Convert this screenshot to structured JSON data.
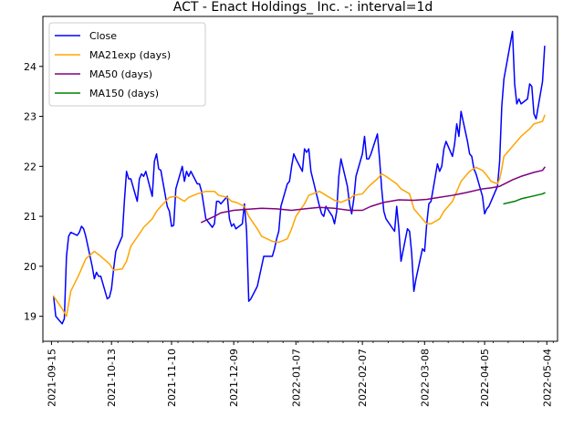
{
  "chart_data": {
    "type": "line",
    "title": "ACT - Enact Holdings_ Inc. -: interval=1d",
    "xlabel": "",
    "ylabel": "",
    "ylim": [
      18.5,
      25.0
    ],
    "xlim": [
      "2021-09-11",
      "2022-05-09"
    ],
    "x_ticks": [
      "2021-09-15",
      "2021-10-13",
      "2021-11-10",
      "2021-12-09",
      "2022-01-07",
      "2022-02-07",
      "2022-03-08",
      "2022-04-05",
      "2022-05-04"
    ],
    "y_ticks": [
      19,
      20,
      21,
      22,
      23,
      24
    ],
    "legend_position": "upper-left",
    "grid": false,
    "series": [
      {
        "name": "Close",
        "color": "#0000ff",
        "points": [
          [
            "2021-09-16",
            19.4
          ],
          [
            "2021-09-17",
            19.0
          ],
          [
            "2021-09-20",
            18.85
          ],
          [
            "2021-09-21",
            18.95
          ],
          [
            "2021-09-22",
            20.2
          ],
          [
            "2021-09-23",
            20.6
          ],
          [
            "2021-09-24",
            20.68
          ],
          [
            "2021-09-27",
            20.62
          ],
          [
            "2021-09-28",
            20.68
          ],
          [
            "2021-09-29",
            20.8
          ],
          [
            "2021-09-30",
            20.75
          ],
          [
            "2021-10-01",
            20.6
          ],
          [
            "2021-10-04",
            20.0
          ],
          [
            "2021-10-05",
            19.75
          ],
          [
            "2021-10-06",
            19.88
          ],
          [
            "2021-10-07",
            19.8
          ],
          [
            "2021-10-08",
            19.8
          ],
          [
            "2021-10-11",
            19.35
          ],
          [
            "2021-10-12",
            19.38
          ],
          [
            "2021-10-13",
            19.55
          ],
          [
            "2021-10-14",
            19.95
          ],
          [
            "2021-10-15",
            20.3
          ],
          [
            "2021-10-18",
            20.6
          ],
          [
            "2021-10-19",
            21.3
          ],
          [
            "2021-10-20",
            21.9
          ],
          [
            "2021-10-21",
            21.75
          ],
          [
            "2021-10-22",
            21.75
          ],
          [
            "2021-10-25",
            21.3
          ],
          [
            "2021-10-26",
            21.75
          ],
          [
            "2021-10-27",
            21.85
          ],
          [
            "2021-10-28",
            21.8
          ],
          [
            "2021-10-29",
            21.9
          ],
          [
            "2021-11-01",
            21.4
          ],
          [
            "2021-11-02",
            22.1
          ],
          [
            "2021-11-03",
            22.25
          ],
          [
            "2021-11-04",
            21.95
          ],
          [
            "2021-11-05",
            21.92
          ],
          [
            "2021-11-08",
            21.2
          ],
          [
            "2021-11-09",
            21.1
          ],
          [
            "2021-11-10",
            20.8
          ],
          [
            "2021-11-11",
            20.82
          ],
          [
            "2021-11-12",
            21.55
          ],
          [
            "2021-11-15",
            22.0
          ],
          [
            "2021-11-16",
            21.7
          ],
          [
            "2021-11-17",
            21.9
          ],
          [
            "2021-11-18",
            21.8
          ],
          [
            "2021-11-19",
            21.9
          ],
          [
            "2021-11-22",
            21.65
          ],
          [
            "2021-11-23",
            21.65
          ],
          [
            "2021-11-24",
            21.5
          ],
          [
            "2021-11-26",
            20.95
          ],
          [
            "2021-11-29",
            20.78
          ],
          [
            "2021-11-30",
            20.85
          ],
          [
            "2021-12-01",
            21.3
          ],
          [
            "2021-12-02",
            21.3
          ],
          [
            "2021-12-03",
            21.25
          ],
          [
            "2021-12-06",
            21.4
          ],
          [
            "2021-12-07",
            20.95
          ],
          [
            "2021-12-08",
            20.8
          ],
          [
            "2021-12-09",
            20.85
          ],
          [
            "2021-12-10",
            20.75
          ],
          [
            "2021-12-13",
            20.85
          ],
          [
            "2021-12-14",
            21.25
          ],
          [
            "2021-12-15",
            20.7
          ],
          [
            "2021-12-16",
            19.3
          ],
          [
            "2021-12-17",
            19.35
          ],
          [
            "2021-12-20",
            19.6
          ],
          [
            "2021-12-21",
            19.8
          ],
          [
            "2021-12-22",
            20.0
          ],
          [
            "2021-12-23",
            20.2
          ],
          [
            "2021-12-27",
            20.2
          ],
          [
            "2021-12-28",
            20.35
          ],
          [
            "2021-12-29",
            20.55
          ],
          [
            "2021-12-30",
            20.7
          ],
          [
            "2021-12-31",
            21.2
          ],
          [
            "2022-01-03",
            21.65
          ],
          [
            "2022-01-04",
            21.7
          ],
          [
            "2022-01-05",
            22.0
          ],
          [
            "2022-01-06",
            22.25
          ],
          [
            "2022-01-07",
            22.15
          ],
          [
            "2022-01-10",
            21.9
          ],
          [
            "2022-01-11",
            22.35
          ],
          [
            "2022-01-12",
            22.28
          ],
          [
            "2022-01-13",
            22.35
          ],
          [
            "2022-01-14",
            21.9
          ],
          [
            "2022-01-18",
            21.2
          ],
          [
            "2022-01-19",
            21.05
          ],
          [
            "2022-01-20",
            21.0
          ],
          [
            "2022-01-21",
            21.2
          ],
          [
            "2022-01-24",
            21.0
          ],
          [
            "2022-01-25",
            20.85
          ],
          [
            "2022-01-26",
            21.1
          ],
          [
            "2022-01-27",
            21.8
          ],
          [
            "2022-01-28",
            22.15
          ],
          [
            "2022-01-31",
            21.6
          ],
          [
            "2022-02-01",
            21.25
          ],
          [
            "2022-02-02",
            21.05
          ],
          [
            "2022-02-03",
            21.35
          ],
          [
            "2022-02-04",
            21.8
          ],
          [
            "2022-02-07",
            22.25
          ],
          [
            "2022-02-08",
            22.6
          ],
          [
            "2022-02-09",
            22.15
          ],
          [
            "2022-02-10",
            22.15
          ],
          [
            "2022-02-11",
            22.25
          ],
          [
            "2022-02-14",
            22.65
          ],
          [
            "2022-02-15",
            22.15
          ],
          [
            "2022-02-16",
            21.55
          ],
          [
            "2022-02-17",
            21.1
          ],
          [
            "2022-02-18",
            20.95
          ],
          [
            "2022-02-22",
            20.7
          ],
          [
            "2022-02-23",
            21.2
          ],
          [
            "2022-02-24",
            20.75
          ],
          [
            "2022-02-25",
            20.1
          ],
          [
            "2022-02-28",
            20.75
          ],
          [
            "2022-03-01",
            20.7
          ],
          [
            "2022-03-02",
            20.25
          ],
          [
            "2022-03-03",
            19.5
          ],
          [
            "2022-03-04",
            19.75
          ],
          [
            "2022-03-07",
            20.35
          ],
          [
            "2022-03-08",
            20.3
          ],
          [
            "2022-03-09",
            20.85
          ],
          [
            "2022-03-10",
            21.25
          ],
          [
            "2022-03-11",
            21.3
          ],
          [
            "2022-03-14",
            22.05
          ],
          [
            "2022-03-15",
            21.9
          ],
          [
            "2022-03-16",
            22.0
          ],
          [
            "2022-03-17",
            22.35
          ],
          [
            "2022-03-18",
            22.5
          ],
          [
            "2022-03-21",
            22.2
          ],
          [
            "2022-03-22",
            22.45
          ],
          [
            "2022-03-23",
            22.85
          ],
          [
            "2022-03-24",
            22.6
          ],
          [
            "2022-03-25",
            23.1
          ],
          [
            "2022-03-28",
            22.5
          ],
          [
            "2022-03-29",
            22.25
          ],
          [
            "2022-03-30",
            22.2
          ],
          [
            "2022-03-31",
            21.95
          ],
          [
            "2022-04-01",
            21.85
          ],
          [
            "2022-04-04",
            21.4
          ],
          [
            "2022-04-05",
            21.05
          ],
          [
            "2022-04-06",
            21.15
          ],
          [
            "2022-04-07",
            21.2
          ],
          [
            "2022-04-08",
            21.3
          ],
          [
            "2022-04-11",
            21.6
          ],
          [
            "2022-04-12",
            22.1
          ],
          [
            "2022-04-13",
            23.2
          ],
          [
            "2022-04-14",
            23.75
          ],
          [
            "2022-04-18",
            24.7
          ],
          [
            "2022-04-19",
            23.65
          ],
          [
            "2022-04-20",
            23.25
          ],
          [
            "2022-04-21",
            23.35
          ],
          [
            "2022-04-22",
            23.25
          ],
          [
            "2022-04-25",
            23.35
          ],
          [
            "2022-04-26",
            23.65
          ],
          [
            "2022-04-27",
            23.6
          ],
          [
            "2022-04-28",
            23.05
          ],
          [
            "2022-04-29",
            22.95
          ],
          [
            "2022-05-02",
            23.7
          ],
          [
            "2022-05-03",
            24.4
          ]
        ]
      },
      {
        "name": "MA21exp (days)",
        "color": "#ffa500",
        "points": [
          [
            "2021-09-16",
            19.4
          ],
          [
            "2021-09-20",
            19.15
          ],
          [
            "2021-09-22",
            19.0
          ],
          [
            "2021-09-24",
            19.5
          ],
          [
            "2021-09-28",
            19.85
          ],
          [
            "2021-10-01",
            20.15
          ],
          [
            "2021-10-05",
            20.3
          ],
          [
            "2021-10-08",
            20.2
          ],
          [
            "2021-10-12",
            20.05
          ],
          [
            "2021-10-14",
            19.92
          ],
          [
            "2021-10-18",
            19.95
          ],
          [
            "2021-10-20",
            20.1
          ],
          [
            "2021-10-22",
            20.4
          ],
          [
            "2021-10-26",
            20.65
          ],
          [
            "2021-10-28",
            20.78
          ],
          [
            "2021-11-01",
            20.95
          ],
          [
            "2021-11-03",
            21.1
          ],
          [
            "2021-11-05",
            21.2
          ],
          [
            "2021-11-09",
            21.38
          ],
          [
            "2021-11-12",
            21.4
          ],
          [
            "2021-11-16",
            21.3
          ],
          [
            "2021-11-18",
            21.38
          ],
          [
            "2021-11-22",
            21.45
          ],
          [
            "2021-11-26",
            21.5
          ],
          [
            "2021-11-30",
            21.5
          ],
          [
            "2021-12-02",
            21.42
          ],
          [
            "2021-12-06",
            21.38
          ],
          [
            "2021-12-08",
            21.3
          ],
          [
            "2021-12-10",
            21.28
          ],
          [
            "2021-12-14",
            21.2
          ],
          [
            "2021-12-16",
            21.0
          ],
          [
            "2021-12-20",
            20.75
          ],
          [
            "2021-12-22",
            20.6
          ],
          [
            "2021-12-27",
            20.5
          ],
          [
            "2021-12-30",
            20.48
          ],
          [
            "2022-01-03",
            20.55
          ],
          [
            "2022-01-05",
            20.75
          ],
          [
            "2022-01-07",
            21.0
          ],
          [
            "2022-01-11",
            21.25
          ],
          [
            "2022-01-13",
            21.42
          ],
          [
            "2022-01-18",
            21.5
          ],
          [
            "2022-01-21",
            21.42
          ],
          [
            "2022-01-25",
            21.32
          ],
          [
            "2022-01-28",
            21.28
          ],
          [
            "2022-02-01",
            21.35
          ],
          [
            "2022-02-03",
            21.42
          ],
          [
            "2022-02-07",
            21.45
          ],
          [
            "2022-02-10",
            21.6
          ],
          [
            "2022-02-14",
            21.75
          ],
          [
            "2022-02-16",
            21.85
          ],
          [
            "2022-02-18",
            21.8
          ],
          [
            "2022-02-23",
            21.65
          ],
          [
            "2022-02-25",
            21.55
          ],
          [
            "2022-03-01",
            21.45
          ],
          [
            "2022-03-03",
            21.15
          ],
          [
            "2022-03-07",
            20.95
          ],
          [
            "2022-03-09",
            20.85
          ],
          [
            "2022-03-11",
            20.85
          ],
          [
            "2022-03-15",
            20.95
          ],
          [
            "2022-03-17",
            21.1
          ],
          [
            "2022-03-21",
            21.3
          ],
          [
            "2022-03-23",
            21.5
          ],
          [
            "2022-03-25",
            21.7
          ],
          [
            "2022-03-29",
            21.9
          ],
          [
            "2022-04-01",
            21.98
          ],
          [
            "2022-04-04",
            21.92
          ],
          [
            "2022-04-06",
            21.82
          ],
          [
            "2022-04-08",
            21.7
          ],
          [
            "2022-04-11",
            21.65
          ],
          [
            "2022-04-12",
            21.75
          ],
          [
            "2022-04-13",
            21.95
          ],
          [
            "2022-04-14",
            22.2
          ],
          [
            "2022-04-18",
            22.4
          ],
          [
            "2022-04-20",
            22.5
          ],
          [
            "2022-04-22",
            22.6
          ],
          [
            "2022-04-26",
            22.75
          ],
          [
            "2022-04-28",
            22.85
          ],
          [
            "2022-05-02",
            22.9
          ],
          [
            "2022-05-03",
            23.02
          ]
        ]
      },
      {
        "name": "MA50 (days)",
        "color": "#800080",
        "points": [
          [
            "2021-11-24",
            20.88
          ],
          [
            "2021-11-30",
            21.0
          ],
          [
            "2021-12-03",
            21.07
          ],
          [
            "2021-12-09",
            21.12
          ],
          [
            "2021-12-15",
            21.14
          ],
          [
            "2021-12-22",
            21.16
          ],
          [
            "2021-12-29",
            21.15
          ],
          [
            "2022-01-05",
            21.12
          ],
          [
            "2022-01-11",
            21.15
          ],
          [
            "2022-01-18",
            21.18
          ],
          [
            "2022-01-25",
            21.16
          ],
          [
            "2022-02-01",
            21.12
          ],
          [
            "2022-02-07",
            21.12
          ],
          [
            "2022-02-11",
            21.2
          ],
          [
            "2022-02-17",
            21.28
          ],
          [
            "2022-02-24",
            21.33
          ],
          [
            "2022-03-03",
            21.32
          ],
          [
            "2022-03-09",
            21.34
          ],
          [
            "2022-03-15",
            21.38
          ],
          [
            "2022-03-21",
            21.42
          ],
          [
            "2022-03-28",
            21.48
          ],
          [
            "2022-04-04",
            21.55
          ],
          [
            "2022-04-08",
            21.57
          ],
          [
            "2022-04-12",
            21.6
          ],
          [
            "2022-04-18",
            21.73
          ],
          [
            "2022-04-22",
            21.8
          ],
          [
            "2022-04-28",
            21.88
          ],
          [
            "2022-05-02",
            21.92
          ],
          [
            "2022-05-03",
            21.98
          ]
        ]
      },
      {
        "name": "MA150 (days)",
        "color": "#008000",
        "points": [
          [
            "2022-04-14",
            21.25
          ],
          [
            "2022-04-19",
            21.3
          ],
          [
            "2022-04-22",
            21.35
          ],
          [
            "2022-04-27",
            21.4
          ],
          [
            "2022-05-02",
            21.45
          ],
          [
            "2022-05-03",
            21.47
          ]
        ]
      }
    ]
  }
}
